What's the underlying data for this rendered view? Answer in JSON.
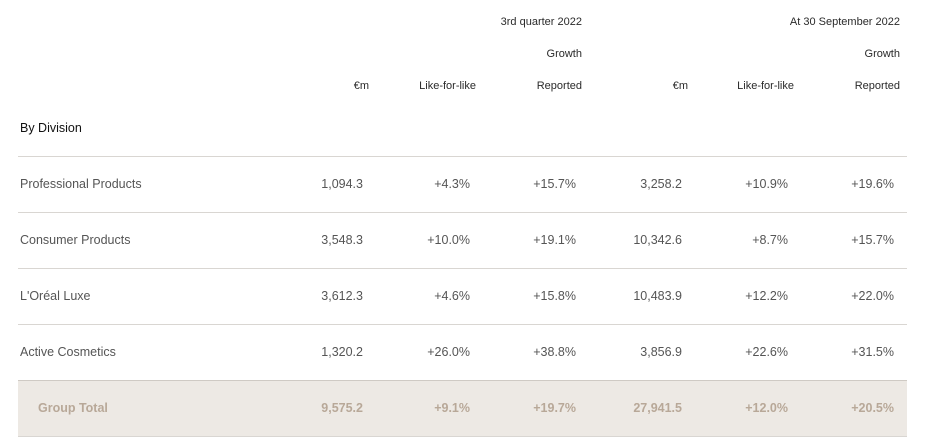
{
  "header": {
    "q3_title": "3rd quarter 2022",
    "ytd_title": "At 30 September 2022",
    "growth_label": "Growth",
    "col_eur": "€m",
    "col_lfl": "Like-for-like",
    "col_reported": "Reported",
    "section_title": "By Division"
  },
  "rows": [
    {
      "name": "Professional Products",
      "q3_eur": "1,094.3",
      "q3_lfl": "+4.3%",
      "q3_rep": "+15.7%",
      "ytd_eur": "3,258.2",
      "ytd_lfl": "+10.9%",
      "ytd_rep": "+19.6%"
    },
    {
      "name": "Consumer Products",
      "q3_eur": "3,548.3",
      "q3_lfl": "+10.0%",
      "q3_rep": "+19.1%",
      "ytd_eur": "10,342.6",
      "ytd_lfl": "+8.7%",
      "ytd_rep": "+15.7%"
    },
    {
      "name": "L'Oréal Luxe",
      "q3_eur": "3,612.3",
      "q3_lfl": "+4.6%",
      "q3_rep": "+15.8%",
      "ytd_eur": "10,483.9",
      "ytd_lfl": "+12.2%",
      "ytd_rep": "+22.0%"
    },
    {
      "name": "Active Cosmetics",
      "q3_eur": "1,320.2",
      "q3_lfl": "+26.0%",
      "q3_rep": "+38.8%",
      "ytd_eur": "3,856.9",
      "ytd_lfl": "+22.6%",
      "ytd_rep": "+31.5%"
    }
  ],
  "total": {
    "name": "Group Total",
    "q3_eur": "9,575.2",
    "q3_lfl": "+9.1%",
    "q3_rep": "+19.7%",
    "ytd_eur": "27,941.5",
    "ytd_lfl": "+12.0%",
    "ytd_rep": "+20.5%"
  },
  "colors": {
    "total_bg": "#ede9e4",
    "total_text": "#b8a898",
    "rule": "#d9d6d2"
  }
}
